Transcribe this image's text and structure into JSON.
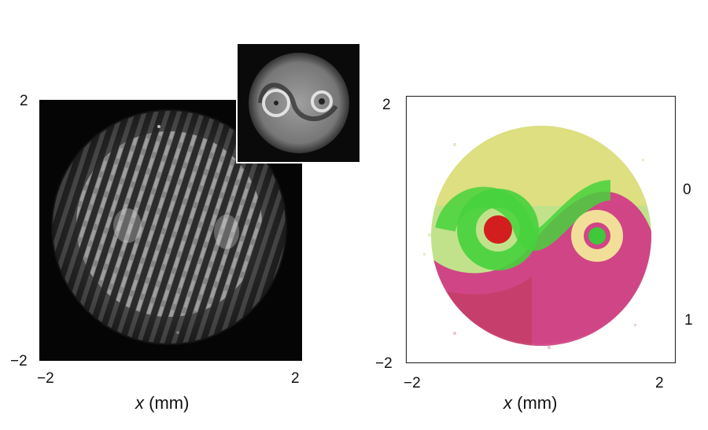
{
  "left_panel": {
    "y_ticks": [
      "2",
      "−2"
    ],
    "x_ticks": [
      "−2",
      "2"
    ],
    "x_label_var": "x",
    "x_label_unit": " (mm)",
    "image_description": "interference fringe pattern of a yin-yang shaped beam"
  },
  "inset": {
    "image_description": "grayscale yin-yang intensity pattern"
  },
  "right_panel": {
    "y_ticks": [
      "2",
      "−2"
    ],
    "x_ticks": [
      "−2",
      "2"
    ],
    "x_label_var": "x",
    "x_label_unit": " (mm)",
    "colorbar_labels": [
      "0",
      "1"
    ],
    "image_description": "yin-yang shaped polarization map, green and magenta halves",
    "colors": {
      "green": "#46d23c",
      "magenta": "#d2367a",
      "red": "#d21e1e",
      "yellow": "#d8dc6a"
    }
  }
}
